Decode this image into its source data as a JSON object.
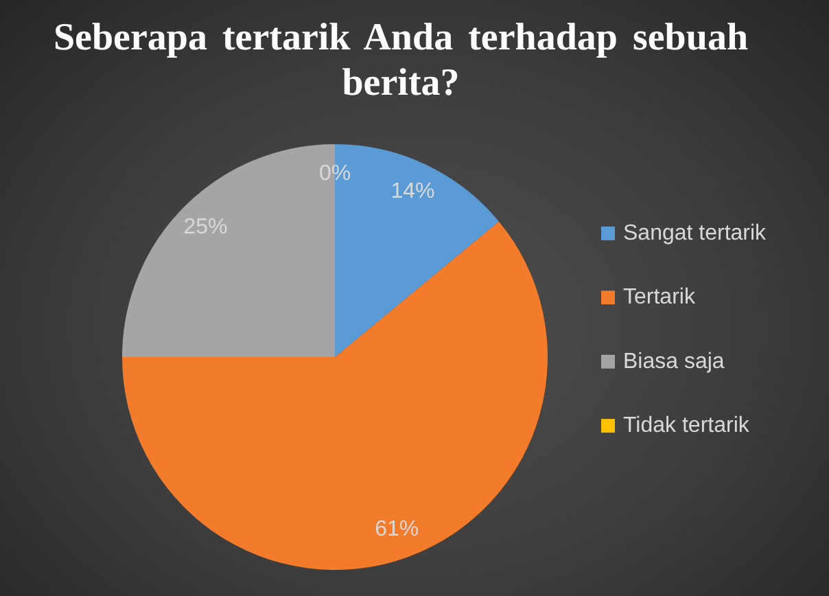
{
  "chart_data": {
    "type": "pie",
    "title": "Seberapa tertarik Anda terhadap sebuah berita?",
    "categories": [
      "Sangat tertarik",
      "Tertarik",
      "Biasa saja",
      "Tidak tertarik"
    ],
    "values": [
      14,
      61,
      25,
      0
    ],
    "colors": [
      "#5b9bd5",
      "#f27c2c",
      "#a5a5a5",
      "#ffc000"
    ],
    "value_labels": [
      "14%",
      "61%",
      "25%",
      "0%"
    ],
    "legend": "right"
  }
}
